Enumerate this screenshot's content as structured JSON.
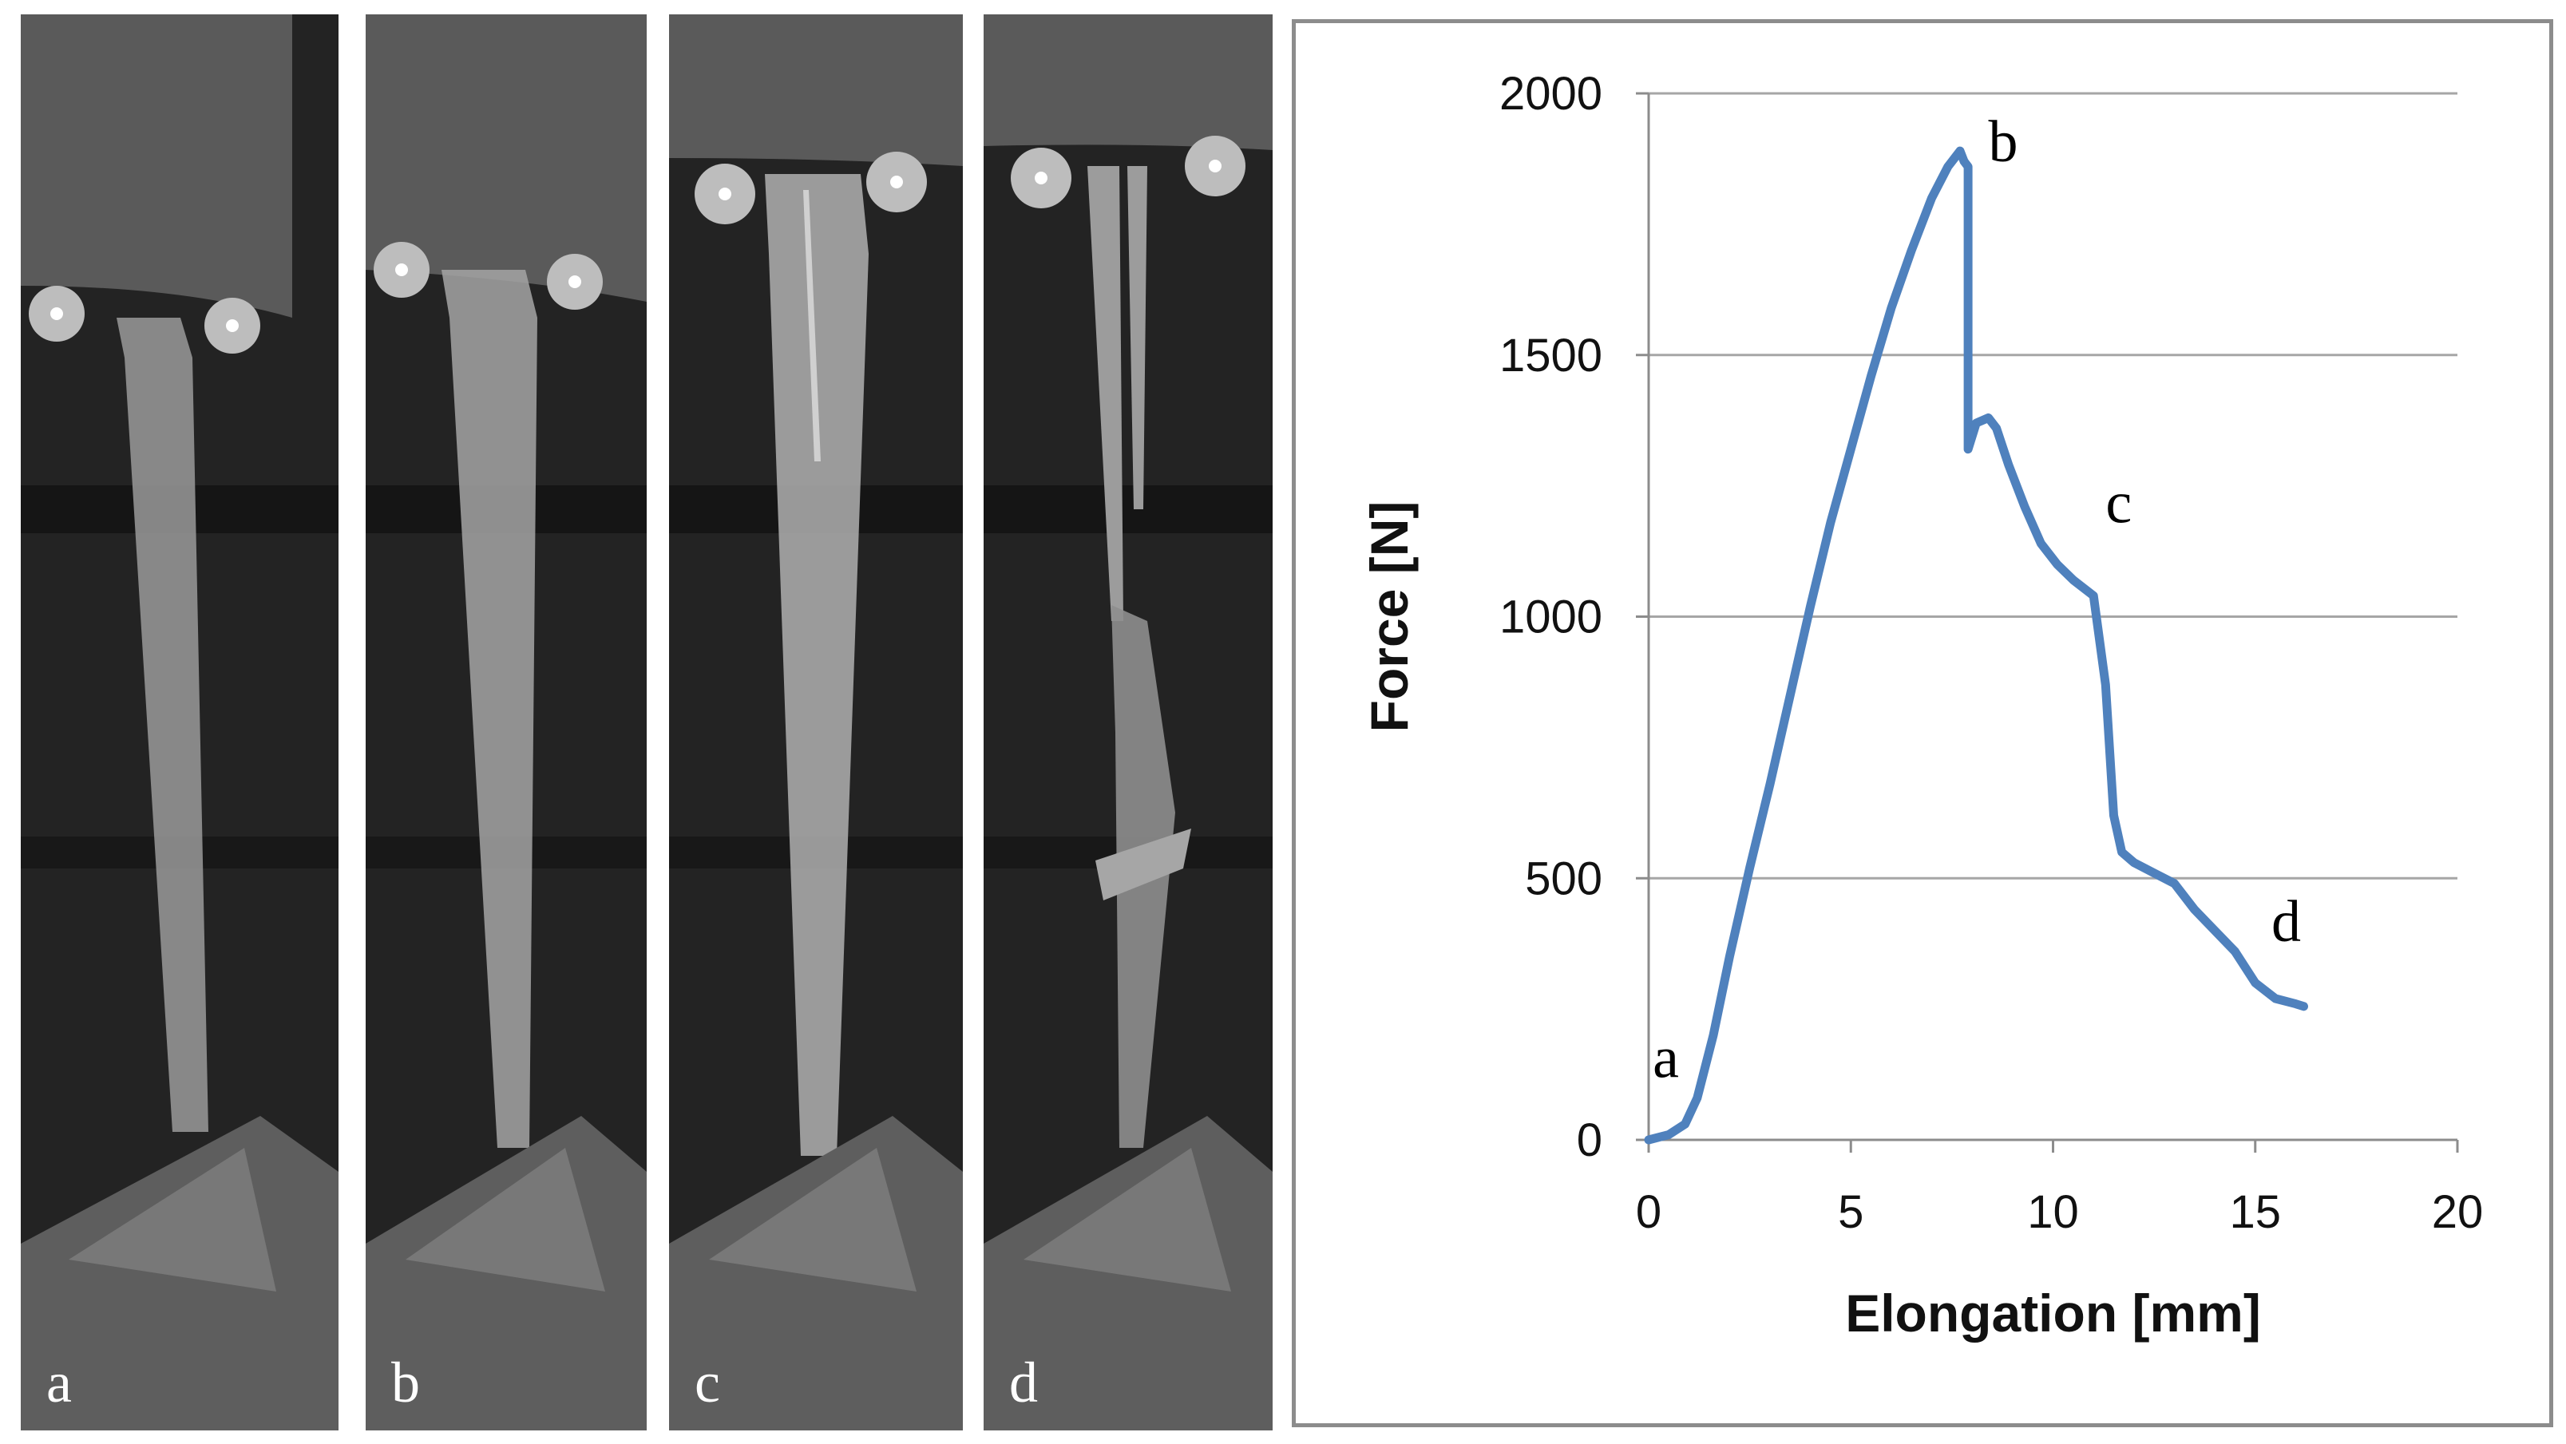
{
  "photos": [
    {
      "label": "a"
    },
    {
      "label": "b"
    },
    {
      "label": "c"
    },
    {
      "label": "d"
    }
  ],
  "chart_data": {
    "type": "line",
    "xlabel": "Elongation [mm]",
    "ylabel": "Force [N]",
    "xlim": [
      0,
      20
    ],
    "ylim": [
      0,
      2000
    ],
    "xticks": [
      0,
      5,
      10,
      15,
      20
    ],
    "yticks": [
      0,
      500,
      1000,
      1500,
      2000
    ],
    "grid": "horizontal",
    "line_color": "#4f81bd",
    "series": [
      {
        "x": [
          0,
          0.5,
          0.9,
          1.2,
          1.6,
          2.0,
          2.5,
          3.0,
          3.5,
          4.0,
          4.5,
          5.0,
          5.5,
          6.0,
          6.5,
          7.0,
          7.4,
          7.7,
          7.8,
          7.9,
          7.9,
          8.1,
          8.4,
          8.6,
          8.9,
          9.3,
          9.7,
          10.1,
          10.5,
          11.0,
          11.3,
          11.5,
          11.7,
          12.0,
          12.5,
          13.0,
          13.5,
          14.0,
          14.5,
          15.0,
          15.5,
          16.0,
          16.2
        ],
        "y": [
          0,
          10,
          30,
          80,
          200,
          350,
          520,
          680,
          850,
          1020,
          1180,
          1320,
          1460,
          1590,
          1700,
          1800,
          1860,
          1890,
          1870,
          1860,
          1320,
          1370,
          1380,
          1360,
          1290,
          1210,
          1140,
          1100,
          1070,
          1040,
          870,
          620,
          550,
          530,
          510,
          490,
          440,
          400,
          360,
          300,
          270,
          260,
          255
        ]
      }
    ],
    "annotations": [
      {
        "text": "a",
        "x": 0.1,
        "y": 120
      },
      {
        "text": "b",
        "x": 8.4,
        "y": 1870
      },
      {
        "text": "c",
        "x": 11.3,
        "y": 1180
      },
      {
        "text": "d",
        "x": 15.4,
        "y": 380
      }
    ]
  }
}
